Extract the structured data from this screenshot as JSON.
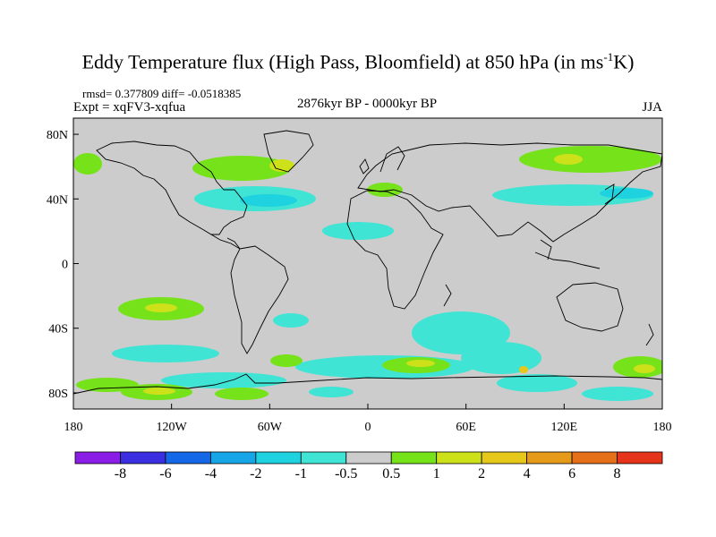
{
  "title": {
    "main": "Eddy Temperature flux (High Pass, Bloomfield) at 850 hPa (in ms",
    "sup": "-1",
    "tail": "K)"
  },
  "stats_line": "rmsd= 0.377809 diff= -0.0518385",
  "experiment_line": "Expt = xqFV3-xqfua",
  "period_line": "2876kyr BP - 0000kyr BP",
  "season": "JJA",
  "axes": {
    "lat_labels": [
      "80N",
      "40N",
      "0",
      "40S",
      "80S"
    ],
    "lat_values": [
      80,
      40,
      0,
      -40,
      -80
    ],
    "lon_labels": [
      "180",
      "120W",
      "60W",
      "0",
      "60E",
      "120E",
      "180"
    ],
    "lon_values": [
      -180,
      -120,
      -60,
      0,
      60,
      120,
      180
    ]
  },
  "colorbar": {
    "colors": [
      "#8a1ee6",
      "#3a2ee0",
      "#1467e6",
      "#16a6e8",
      "#1fd2e0",
      "#3fe4d4",
      "#cccccc",
      "#76e21a",
      "#cde11a",
      "#e6c81a",
      "#e69a1a",
      "#e6701a",
      "#e6341a"
    ],
    "labels": [
      "-8",
      "-6",
      "-4",
      "-2",
      "-1",
      "-0.5",
      "0.5",
      "1",
      "2",
      "4",
      "6",
      "8"
    ]
  },
  "colors": {
    "background": "#cccccc",
    "coastline": "#000000",
    "neg_light": "#3fe4d4",
    "neg_mid": "#1fd2e0",
    "pos_light": "#76e21a",
    "pos_mid": "#cde11a",
    "pos_high": "#e6c81a"
  }
}
